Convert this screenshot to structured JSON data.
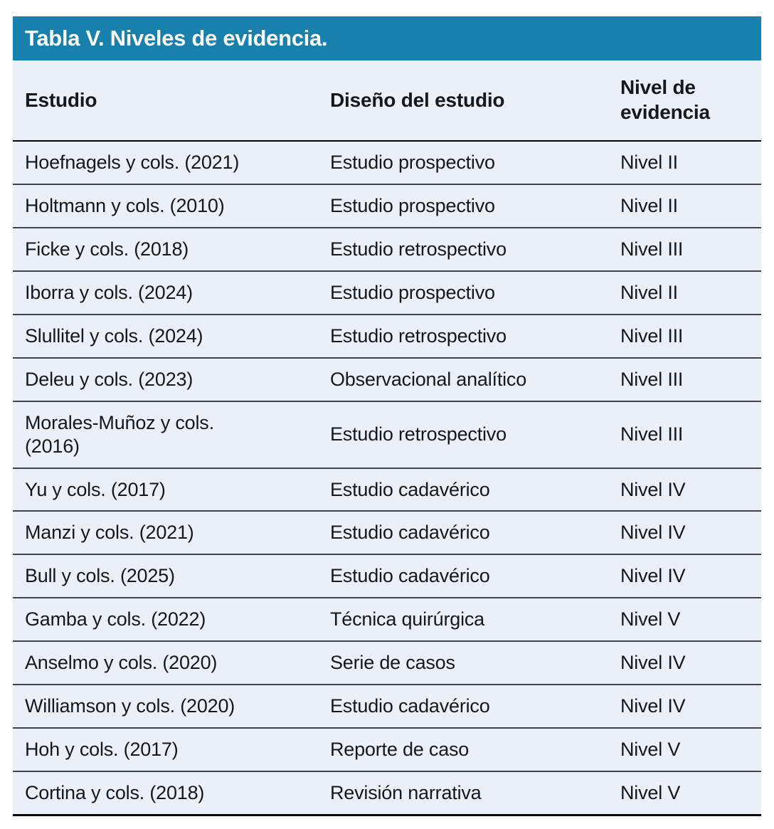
{
  "colors": {
    "accent_teal": "#1780AD",
    "table_body_bg": "#EBEFF7",
    "row_divider": "#3E444B",
    "strong_rule": "#000000",
    "title_text": "#FFFFFF",
    "body_text": "#15181C"
  },
  "table": {
    "title": "Tabla V. Niveles de evidencia.",
    "columns": {
      "estudio": "Estudio",
      "diseno": "Diseño del estudio",
      "nivel": "Nivel de evidencia"
    },
    "rows": [
      {
        "estudio": "Hoefnagels y cols. (2021)",
        "diseno": "Estudio prospectivo",
        "nivel": "Nivel II"
      },
      {
        "estudio": "Holtmann y cols. (2010)",
        "diseno": "Estudio prospectivo",
        "nivel": "Nivel II"
      },
      {
        "estudio": "Ficke y cols. (2018)",
        "diseno": "Estudio retrospectivo",
        "nivel": "Nivel III"
      },
      {
        "estudio": "Iborra y cols. (2024)",
        "diseno": "Estudio prospectivo",
        "nivel": "Nivel II"
      },
      {
        "estudio": "Slullitel y cols. (2024)",
        "diseno": "Estudio retrospectivo",
        "nivel": "Nivel III"
      },
      {
        "estudio": "Deleu y cols. (2023)",
        "diseno": "Observacional analítico",
        "nivel": "Nivel III"
      },
      {
        "estudio": "Morales-Muñoz y cols.\n(2016)",
        "diseno": "Estudio retrospectivo",
        "nivel": "Nivel III"
      },
      {
        "estudio": "Yu y cols. (2017)",
        "diseno": "Estudio cadavérico",
        "nivel": "Nivel IV"
      },
      {
        "estudio": "Manzi y cols. (2021)",
        "diseno": "Estudio cadavérico",
        "nivel": "Nivel IV"
      },
      {
        "estudio": "Bull y cols. (2025)",
        "diseno": "Estudio cadavérico",
        "nivel": "Nivel IV"
      },
      {
        "estudio": "Gamba y cols. (2022)",
        "diseno": "Técnica quirúrgica",
        "nivel": "Nivel V"
      },
      {
        "estudio": "Anselmo y cols. (2020)",
        "diseno": "Serie de casos",
        "nivel": "Nivel IV"
      },
      {
        "estudio": "Williamson y cols. (2020)",
        "diseno": "Estudio cadavérico",
        "nivel": "Nivel IV"
      },
      {
        "estudio": "Hoh y cols. (2017)",
        "diseno": "Reporte de caso",
        "nivel": "Nivel V"
      },
      {
        "estudio": "Cortina y cols. (2018)",
        "diseno": "Revisión narrativa",
        "nivel": "Nivel V"
      }
    ]
  }
}
